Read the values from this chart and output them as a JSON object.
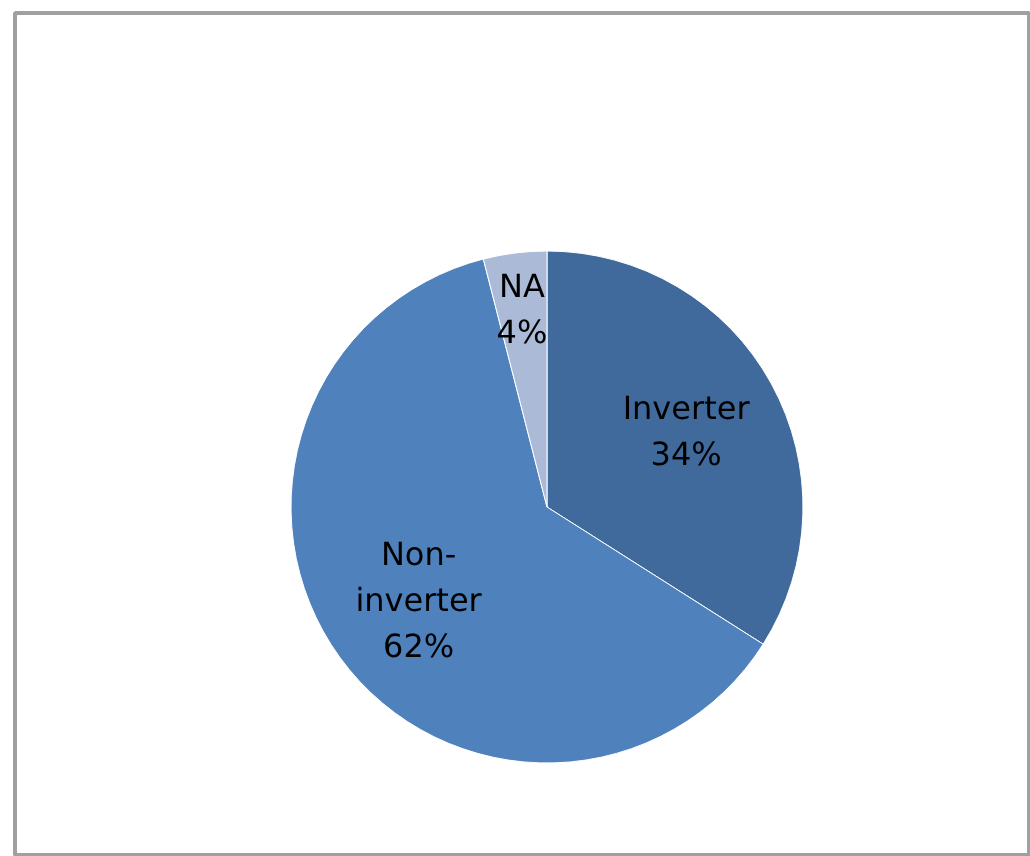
{
  "chart_data": {
    "type": "pie",
    "categories": [
      "Inverter",
      "Non-inverter",
      "NA"
    ],
    "values": [
      34,
      62,
      4
    ],
    "colors": [
      "#416a9c",
      "#4f81bd",
      "#aabad7"
    ],
    "value_labels": [
      "34%",
      "62%",
      "4%"
    ]
  }
}
